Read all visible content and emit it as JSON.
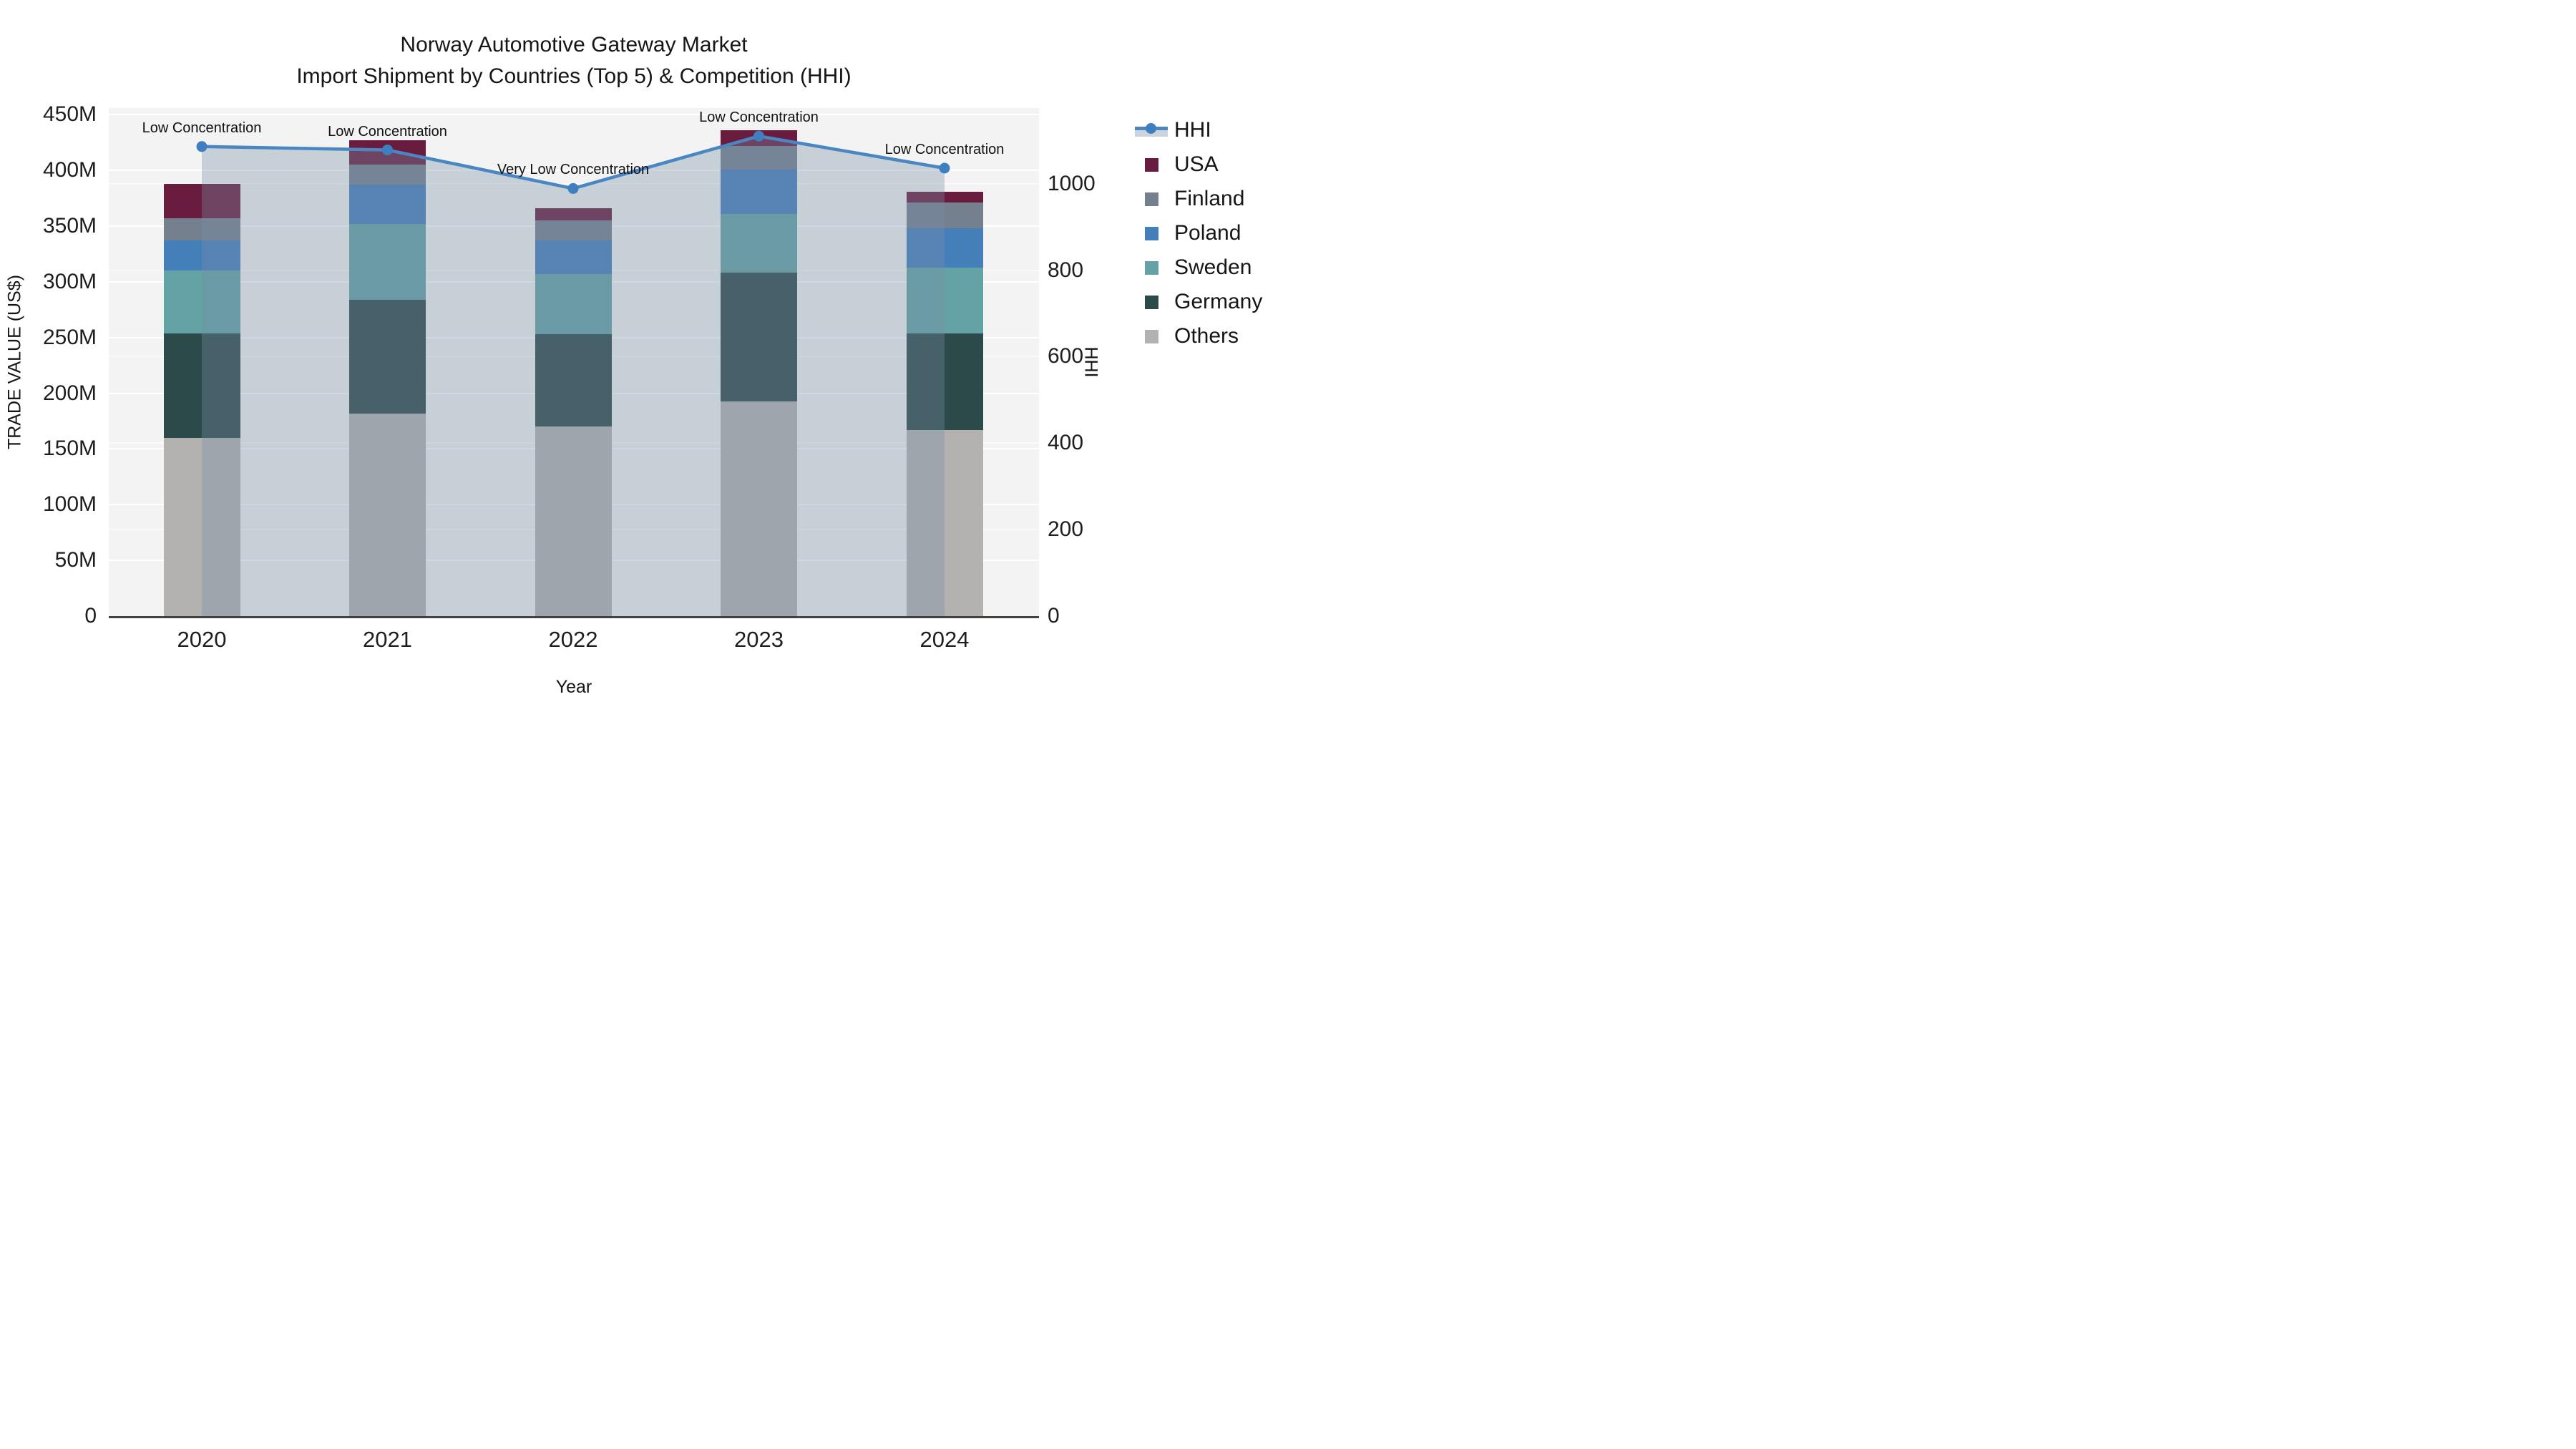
{
  "page": {
    "title_line1": "Norway Automotive Gateway Market",
    "title_line2": "Import Shipment by Countries (Top 5) & Competition (HHI)"
  },
  "axes": {
    "x_title": "Year",
    "y_left_title": "TRADE VALUE (US$)",
    "y_right_title": "HHI",
    "x_ticks": [
      "2020",
      "2021",
      "2022",
      "2023",
      "2024"
    ],
    "y_left_ticks": [
      "0",
      "50M",
      "100M",
      "150M",
      "200M",
      "250M",
      "300M",
      "350M",
      "400M",
      "450M"
    ],
    "y_right_ticks": [
      "0",
      "200",
      "400",
      "600",
      "800",
      "1000"
    ]
  },
  "legend": {
    "items": [
      {
        "label": "HHI",
        "type": "line",
        "color": "#4a86c2"
      },
      {
        "label": "USA",
        "type": "square",
        "color": "#6a1c3e"
      },
      {
        "label": "Finland",
        "type": "square",
        "color": "#74808e"
      },
      {
        "label": "Poland",
        "type": "square",
        "color": "#447fba"
      },
      {
        "label": "Sweden",
        "type": "square",
        "color": "#63a3a5"
      },
      {
        "label": "Germany",
        "type": "square",
        "color": "#2b4a49"
      },
      {
        "label": "Others",
        "type": "square",
        "color": "#b3b2b0"
      }
    ]
  },
  "chart_data": {
    "type": "bar",
    "subtype": "stacked-bars-with-line-overlay",
    "title": "Norway Automotive Gateway Market",
    "subtitle": "Import Shipment by Countries (Top 5) & Competition (HHI)",
    "xlabel": "Year",
    "ylabel_left": "TRADE VALUE (US$)",
    "ylabel_right": "HHI",
    "categories": [
      "2020",
      "2021",
      "2022",
      "2023",
      "2024"
    ],
    "unit": "million US$",
    "stack_order_bottom_to_top": [
      "Others",
      "Germany",
      "Sweden",
      "Poland",
      "Finland",
      "USA"
    ],
    "series": [
      {
        "name": "USA",
        "color": "#6a1c3e",
        "values": [
          31,
          22,
          11,
          14,
          10
        ]
      },
      {
        "name": "Finland",
        "color": "#74808e",
        "values": [
          20,
          18,
          18,
          21,
          23
        ]
      },
      {
        "name": "Poland",
        "color": "#447fba",
        "values": [
          27,
          35,
          30,
          40,
          35
        ]
      },
      {
        "name": "Sweden",
        "color": "#63a3a5",
        "values": [
          56,
          68,
          54,
          53,
          59
        ]
      },
      {
        "name": "Germany",
        "color": "#2b4a49",
        "values": [
          94,
          102,
          83,
          115,
          87
        ]
      },
      {
        "name": "Others",
        "color": "#b3b2b0",
        "values": [
          160,
          182,
          170,
          193,
          167
        ]
      }
    ],
    "bar_totals": [
      388,
      427,
      366,
      436,
      381
    ],
    "line_series": {
      "name": "HHI",
      "color": "#4a86c2",
      "marker_color": "#3f7fbf",
      "fill_color": "rgba(120,140,165,0.35)",
      "values": [
        1086,
        1078,
        989,
        1110,
        1036
      ],
      "axis": "right"
    },
    "annotations": [
      {
        "x": "2020",
        "text": "Low Concentration"
      },
      {
        "x": "2021",
        "text": "Low Concentration"
      },
      {
        "x": "2022",
        "text": "Very Low Concentration"
      },
      {
        "x": "2023",
        "text": "Low Concentration"
      },
      {
        "x": "2024",
        "text": "Low Concentration"
      }
    ],
    "ylim_left": [
      0,
      456
    ],
    "ylim_right": [
      0,
      1175
    ],
    "grid": true,
    "legend_position": "right"
  }
}
